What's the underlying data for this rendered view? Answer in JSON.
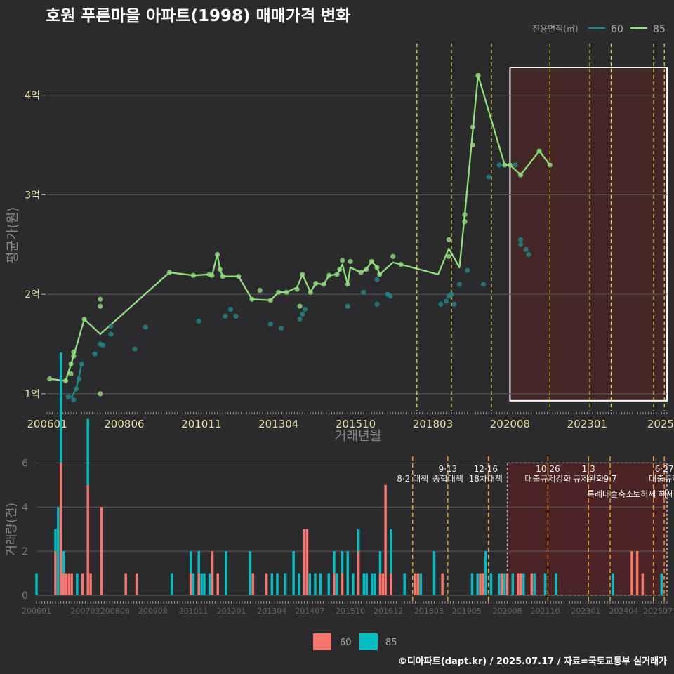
{
  "title": "호원 푸른마을 아파트(1998) 매매가격 변화",
  "footer": "©디아파트(dapt.kr) / 2025.07.17 / 자료=국토교통부 실거래가",
  "colors": {
    "background": "#2b2b2d",
    "grid": "#5a5a5a",
    "series60": "#1f8a8a",
    "series85": "#90e07a",
    "bar60": "#f8766d",
    "bar85": "#00bfc4",
    "policy_line_top": "#e8e033",
    "policy_line_bottom": "#f0a020",
    "highlight_fill": "#5a2323",
    "title": "#ffffff",
    "axis_text": "#e8e0a0",
    "axis_title": "#888888"
  },
  "chart_data": [
    {
      "type": "line",
      "title": "호원 푸른마을 아파트(1998) 매매가격 변화",
      "xlabel": "거래년월",
      "ylabel": "평균가(원)",
      "x_unit": "months since 2006-01",
      "xlim": [
        0,
        233
      ],
      "ylim": [
        0.83,
        4.52
      ],
      "yticks": [
        1,
        2,
        3,
        4
      ],
      "ytick_labels": [
        "1억",
        "2억",
        "3억",
        "4억"
      ],
      "xticks": [
        0,
        29,
        58,
        87,
        116,
        145,
        174,
        203,
        228
      ],
      "xtick_labels": [
        "200601",
        "200806",
        "201011",
        "201304",
        "201510",
        "201803",
        "202008",
        "202301",
        "2025"
      ],
      "legend": {
        "title": "전용면적(㎡)",
        "items": [
          "60",
          "85"
        ],
        "position": "top-right"
      },
      "highlight": {
        "x_from": 174,
        "x_to": 233,
        "y_from": 0.93,
        "y_to": 4.28
      },
      "policy_lines": [
        139,
        152,
        167,
        189,
        204,
        212,
        228,
        232
      ],
      "series": [
        {
          "name": "85",
          "line": [
            [
              1,
              1.15
            ],
            [
              7,
              1.13
            ],
            [
              10,
              1.38
            ],
            [
              14,
              1.75
            ],
            [
              20,
              1.6
            ],
            [
              46,
              2.22
            ],
            [
              55,
              2.19
            ],
            [
              61,
              2.2
            ],
            [
              62,
              2.19
            ],
            [
              64,
              2.4
            ],
            [
              65,
              2.25
            ],
            [
              66,
              2.18
            ],
            [
              72,
              2.18
            ],
            [
              77,
              1.95
            ],
            [
              84,
              1.94
            ],
            [
              87,
              2.02
            ],
            [
              90,
              2.02
            ],
            [
              94,
              2.07
            ],
            [
              96,
              2.2
            ],
            [
              99,
              2.02
            ],
            [
              101,
              2.11
            ],
            [
              104,
              2.1
            ],
            [
              106,
              2.19
            ],
            [
              109,
              2.2
            ],
            [
              111,
              2.3
            ],
            [
              113,
              2.1
            ],
            [
              114,
              2.27
            ],
            [
              118,
              2.22
            ],
            [
              120,
              2.25
            ],
            [
              122,
              2.33
            ],
            [
              124,
              2.27
            ],
            [
              125,
              2.2
            ],
            [
              130,
              2.32
            ],
            [
              133,
              2.3
            ],
            [
              147,
              2.2
            ],
            [
              151,
              2.46
            ],
            [
              155,
              2.27
            ],
            [
              157,
              2.8
            ],
            [
              162,
              4.2
            ],
            [
              172,
              3.3
            ],
            [
              174,
              3.3
            ],
            [
              178,
              3.2
            ],
            [
              185,
              3.44
            ],
            [
              189,
              3.3
            ]
          ],
          "points": [
            [
              1,
              1.15
            ],
            [
              7,
              1.13
            ],
            [
              9,
              1.3
            ],
            [
              9,
              1.2
            ],
            [
              10,
              1.42
            ],
            [
              10,
              1.38
            ],
            [
              14,
              1.75
            ],
            [
              20,
              1.95
            ],
            [
              20,
              1.88
            ],
            [
              20,
              1.0
            ],
            [
              46,
              2.22
            ],
            [
              55,
              2.19
            ],
            [
              61,
              2.2
            ],
            [
              62,
              2.19
            ],
            [
              64,
              2.4
            ],
            [
              65,
              2.25
            ],
            [
              66,
              2.18
            ],
            [
              72,
              2.18
            ],
            [
              77,
              1.95
            ],
            [
              80,
              2.04
            ],
            [
              84,
              1.94
            ],
            [
              87,
              2.02
            ],
            [
              90,
              2.02
            ],
            [
              94,
              2.05
            ],
            [
              95,
              1.88
            ],
            [
              96,
              2.2
            ],
            [
              99,
              2.02
            ],
            [
              101,
              2.11
            ],
            [
              104,
              2.1
            ],
            [
              106,
              2.19
            ],
            [
              109,
              2.2
            ],
            [
              110,
              2.25
            ],
            [
              111,
              2.34
            ],
            [
              113,
              2.1
            ],
            [
              114,
              2.33
            ],
            [
              118,
              2.22
            ],
            [
              120,
              2.25
            ],
            [
              122,
              2.33
            ],
            [
              124,
              2.27
            ],
            [
              125,
              2.2
            ],
            [
              130,
              2.38
            ],
            [
              133,
              2.3
            ],
            [
              151,
              2.55
            ],
            [
              151,
              2.38
            ],
            [
              157,
              2.8
            ],
            [
              157,
              2.73
            ],
            [
              160,
              3.68
            ],
            [
              160,
              3.5
            ],
            [
              162,
              4.2
            ],
            [
              172,
              3.3
            ],
            [
              174,
              3.3
            ],
            [
              178,
              3.2
            ],
            [
              185,
              3.44
            ],
            [
              189,
              3.3
            ]
          ]
        },
        {
          "name": "60",
          "line": [
            [
              9,
              0.96
            ],
            [
              11,
              1.05
            ],
            [
              13,
              1.3
            ]
          ],
          "points": [
            [
              8,
              0.97
            ],
            [
              10,
              0.94
            ],
            [
              11,
              1.05
            ],
            [
              12,
              1.15
            ],
            [
              13,
              1.3
            ],
            [
              18,
              1.4
            ],
            [
              20,
              1.5
            ],
            [
              21,
              1.49
            ],
            [
              24,
              1.68
            ],
            [
              24,
              1.6
            ],
            [
              33,
              1.45
            ],
            [
              37,
              1.67
            ],
            [
              57,
              1.73
            ],
            [
              67,
              1.78
            ],
            [
              69,
              1.85
            ],
            [
              71,
              1.78
            ],
            [
              84,
              1.7
            ],
            [
              88,
              1.66
            ],
            [
              95,
              1.75
            ],
            [
              96,
              1.8
            ],
            [
              97,
              1.85
            ],
            [
              113,
              1.88
            ],
            [
              119,
              2.02
            ],
            [
              124,
              1.9
            ],
            [
              124,
              2.15
            ],
            [
              128,
              2.0
            ],
            [
              129,
              1.98
            ],
            [
              148,
              1.9
            ],
            [
              150,
              1.93
            ],
            [
              151,
              1.98
            ],
            [
              152,
              2.0
            ],
            [
              153,
              1.9
            ],
            [
              155,
              2.1
            ],
            [
              158,
              2.24
            ],
            [
              164,
              2.1
            ],
            [
              166,
              3.18
            ],
            [
              170,
              3.3
            ],
            [
              176,
              3.3
            ],
            [
              178,
              2.55
            ],
            [
              178,
              2.5
            ],
            [
              180,
              2.45
            ],
            [
              181,
              2.4
            ]
          ]
        }
      ]
    },
    {
      "type": "bar",
      "xlabel": "",
      "ylabel": "거래량(건)",
      "x_unit": "months since 2006-01",
      "xlim": [
        0,
        233
      ],
      "ylim": [
        0,
        6.3
      ],
      "yticks": [
        0,
        2,
        4,
        6
      ],
      "ytick_labels": [
        "0",
        "2",
        "4",
        "6"
      ],
      "xticks": [
        0,
        18,
        29,
        43,
        58,
        72,
        87,
        101,
        116,
        130,
        145,
        159,
        174,
        188,
        203,
        217,
        228
      ],
      "xtick_labels": [
        "200601",
        "200703",
        "200806",
        "200908",
        "201011",
        "201201",
        "201304",
        "201407",
        "201510",
        "201612",
        "201803",
        "201905",
        "202008",
        "202110",
        "202301",
        "202404",
        "202507"
      ],
      "legend": {
        "items": [
          "60",
          "85"
        ],
        "position": "bottom"
      },
      "highlight": {
        "x_from": 174,
        "x_to": 233
      },
      "policy_lines": [
        139,
        152,
        167,
        189,
        204,
        212,
        228,
        232
      ],
      "annotations": [
        {
          "x": 139,
          "row": 1,
          "text": "8·2 대책"
        },
        {
          "x": 152,
          "row": 0,
          "text": "9·13"
        },
        {
          "x": 152,
          "row": 1,
          "text": "종합대책"
        },
        {
          "x": 166,
          "row": 0,
          "text": "12·16"
        },
        {
          "x": 166,
          "row": 1,
          "text": "18차대책"
        },
        {
          "x": 189,
          "row": 0,
          "text": "10·26"
        },
        {
          "x": 189,
          "row": 1,
          "text": "대출규제강화"
        },
        {
          "x": 204,
          "row": 0,
          "text": "1·3"
        },
        {
          "x": 204,
          "row": 1,
          "text": "규제완화"
        },
        {
          "x": 212,
          "row": 1,
          "text": "9·7"
        },
        {
          "x": 212,
          "row": 2,
          "text": "특례대출축소"
        },
        {
          "x": 228,
          "row": 2,
          "text": "토허제 해제"
        },
        {
          "x": 232,
          "row": 0,
          "text": "6·27"
        },
        {
          "x": 232,
          "row": 1,
          "text": "대출규제"
        }
      ],
      "series": [
        {
          "name": "60",
          "bars": [
            [
              7,
              2
            ],
            [
              9,
              6
            ],
            [
              10,
              1
            ],
            [
              11,
              1
            ],
            [
              12,
              1
            ],
            [
              13,
              1
            ],
            [
              17,
              1
            ],
            [
              19,
              5
            ],
            [
              20,
              1
            ],
            [
              24,
              4
            ],
            [
              33,
              1
            ],
            [
              37,
              1
            ],
            [
              57,
              1
            ],
            [
              60,
              1
            ],
            [
              65,
              2
            ],
            [
              67,
              1
            ],
            [
              80,
              1
            ],
            [
              85,
              1
            ],
            [
              99,
              3
            ],
            [
              100,
              3
            ],
            [
              110,
              1
            ],
            [
              113,
              1
            ],
            [
              119,
              2
            ],
            [
              127,
              1
            ],
            [
              128,
              1
            ],
            [
              129,
              5
            ],
            [
              131,
              1
            ],
            [
              140,
              1
            ],
            [
              141,
              1
            ],
            [
              150,
              1
            ],
            [
              164,
              1
            ],
            [
              165,
              1
            ],
            [
              172,
              1
            ],
            [
              174,
              1
            ],
            [
              178,
              1
            ],
            [
              179,
              1
            ],
            [
              183,
              1
            ],
            [
              220,
              2
            ],
            [
              222,
              2
            ],
            [
              224,
              1
            ]
          ]
        },
        {
          "name": "85",
          "bars": [
            [
              0,
              1
            ],
            [
              7,
              1
            ],
            [
              8,
              4
            ],
            [
              9,
              5
            ],
            [
              10,
              1
            ],
            [
              15,
              1
            ],
            [
              19,
              3
            ],
            [
              50,
              1
            ],
            [
              57,
              1
            ],
            [
              58,
              1
            ],
            [
              60,
              1
            ],
            [
              61,
              1
            ],
            [
              62,
              1
            ],
            [
              64,
              1
            ],
            [
              70,
              2
            ],
            [
              79,
              2
            ],
            [
              87,
              1
            ],
            [
              89,
              1
            ],
            [
              92,
              1
            ],
            [
              95,
              2
            ],
            [
              97,
              1
            ],
            [
              101,
              1
            ],
            [
              103,
              1
            ],
            [
              105,
              1
            ],
            [
              108,
              1
            ],
            [
              110,
              1
            ],
            [
              111,
              1
            ],
            [
              113,
              1
            ],
            [
              115,
              2
            ],
            [
              117,
              1
            ],
            [
              119,
              1
            ],
            [
              121,
              1
            ],
            [
              122,
              1
            ],
            [
              124,
              1
            ],
            [
              125,
              1
            ],
            [
              127,
              1
            ],
            [
              131,
              2
            ],
            [
              136,
              1
            ],
            [
              142,
              1
            ],
            [
              147,
              2
            ],
            [
              161,
              1
            ],
            [
              163,
              1
            ],
            [
              166,
              2
            ],
            [
              168,
              1
            ],
            [
              171,
              1
            ],
            [
              173,
              1
            ],
            [
              176,
              1
            ],
            [
              180,
              1
            ],
            [
              184,
              1
            ],
            [
              188,
              1
            ],
            [
              192,
              1
            ],
            [
              213,
              1
            ],
            [
              231,
              1
            ]
          ]
        }
      ]
    }
  ]
}
